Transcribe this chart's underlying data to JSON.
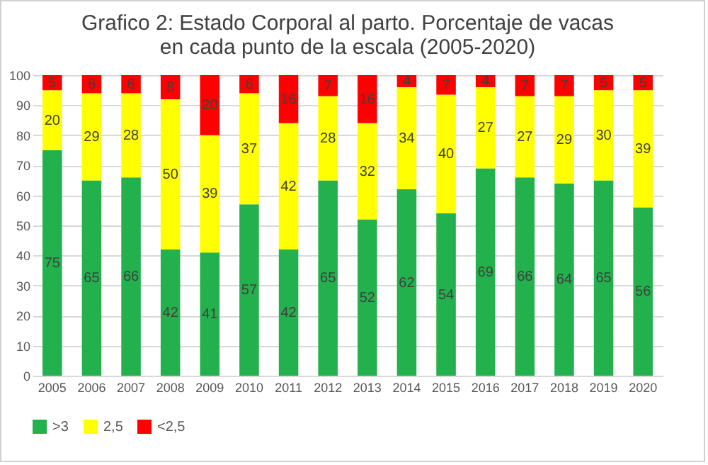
{
  "chart_data": {
    "type": "bar",
    "title": "Grafico 2: Estado Corporal al parto. Porcentaje de vacas en cada punto de la escala (2005-2020)",
    "categories": [
      "2005",
      "2006",
      "2007",
      "2008",
      "2009",
      "2010",
      "2011",
      "2012",
      "2013",
      "2014",
      "2015",
      "2016",
      "2017",
      "2018",
      "2019",
      "2020"
    ],
    "series": [
      {
        "name": ">3",
        "color": "#22b14c",
        "values": [
          75,
          65,
          66,
          42,
          41,
          57,
          42,
          65,
          52,
          62,
          54,
          69,
          66,
          64,
          65,
          56
        ],
        "value_labels": [
          "75",
          "65",
          "66",
          "42",
          "41",
          "57",
          "42",
          "65",
          "52",
          "62",
          "54",
          "69",
          "66",
          "64",
          "65",
          "56"
        ]
      },
      {
        "name": "2,5",
        "color": "#ffff00",
        "values": [
          20,
          29,
          28,
          50,
          39,
          37,
          42,
          28,
          32,
          34,
          39.5,
          27,
          27,
          29,
          30,
          39
        ],
        "value_labels": [
          "20",
          "29",
          "28",
          "50",
          "39",
          "37",
          "42",
          "28",
          "32",
          "34",
          "40",
          "27",
          "27",
          "29",
          "30",
          "39"
        ]
      },
      {
        "name": "<2,5",
        "color": "#ff0000",
        "values": [
          5,
          6,
          6,
          8,
          20,
          6,
          16,
          7,
          16,
          4,
          6.5,
          4,
          7,
          7,
          5,
          5
        ],
        "value_labels": [
          "5",
          "6",
          "6",
          "8",
          "20",
          "6",
          "16",
          "7",
          "16",
          "4",
          "7",
          "4",
          "7",
          "7",
          "5",
          "5"
        ]
      }
    ],
    "stacked": true,
    "ylim": [
      0,
      100
    ],
    "yticks": [
      0,
      10,
      20,
      30,
      40,
      50,
      60,
      70,
      80,
      90,
      100
    ],
    "grid": "y",
    "legend": "bottom"
  }
}
